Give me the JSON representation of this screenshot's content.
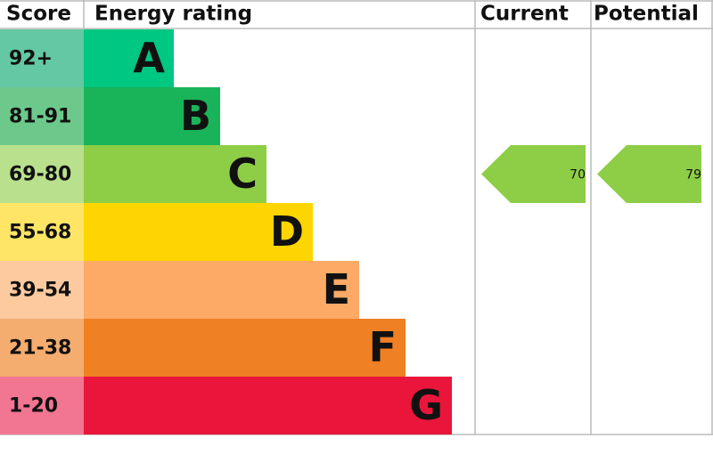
{
  "header": {
    "score": "Score",
    "rating": "Energy rating",
    "current": "Current",
    "potential": "Potential"
  },
  "bands": [
    {
      "range": "92+",
      "letter": "A",
      "color": "#00c781",
      "score_color": "#63c8a3"
    },
    {
      "range": "81-91",
      "letter": "B",
      "color": "#19b459",
      "score_color": "#6cc98b"
    },
    {
      "range": "69-80",
      "letter": "C",
      "color": "#8dce46",
      "score_color": "#b9e08c"
    },
    {
      "range": "55-68",
      "letter": "D",
      "color": "#ffd500",
      "score_color": "#ffe566"
    },
    {
      "range": "39-54",
      "letter": "E",
      "color": "#fcaa65",
      "score_color": "#fdcaa0"
    },
    {
      "range": "21-38",
      "letter": "F",
      "color": "#ef8023",
      "score_color": "#f4ac6f"
    },
    {
      "range": "1-20",
      "letter": "G",
      "color": "#e9153b",
      "score_color": "#f27592"
    }
  ],
  "current": {
    "value": 70
  },
  "potential": {
    "value": 79
  }
}
